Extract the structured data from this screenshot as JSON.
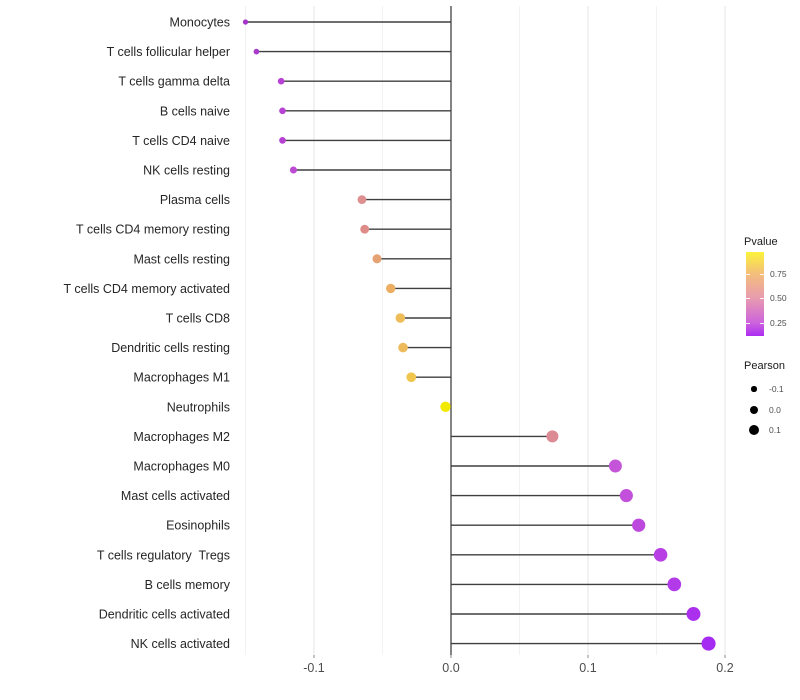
{
  "figure": {
    "background": "#FFFFFF"
  },
  "chart_data": {
    "type": "scatter",
    "variant": "lollipop",
    "orientation": "horizontal",
    "title": "",
    "xlabel": "",
    "ylabel": "",
    "grid": "on",
    "legend_position": "right",
    "baseline": 0,
    "x_axis": {
      "range": [
        -0.156,
        0.205
      ],
      "ticks": [
        {
          "value": -0.1,
          "label": "-0.1"
        },
        {
          "value": 0.0,
          "label": "0.0"
        },
        {
          "value": 0.1,
          "label": "0.1"
        },
        {
          "value": 0.2,
          "label": "0.2"
        }
      ],
      "minor_ticks": [
        -0.15,
        -0.05,
        0.05,
        0.15
      ]
    },
    "points": [
      {
        "label": "Monocytes",
        "pearson": -0.15,
        "color": "#A435C8"
      },
      {
        "label": "T cells follicular helper",
        "pearson": -0.142,
        "color": "#A93BC9"
      },
      {
        "label": "T cells gamma delta",
        "pearson": -0.124,
        "color": "#B741D4"
      },
      {
        "label": "B cells naive",
        "pearson": -0.123,
        "color": "#B742D4"
      },
      {
        "label": "T cells CD4 naive",
        "pearson": -0.123,
        "color": "#B641D3"
      },
      {
        "label": "NK cells resting",
        "pearson": -0.115,
        "color": "#BC4BD4"
      },
      {
        "label": "Plasma cells",
        "pearson": -0.065,
        "color": "#DE8F90"
      },
      {
        "label": "T cells CD4 memory resting",
        "pearson": -0.063,
        "color": "#DD8C88"
      },
      {
        "label": "Mast cells resting",
        "pearson": -0.054,
        "color": "#E5A273"
      },
      {
        "label": "T cells CD4 memory activated",
        "pearson": -0.044,
        "color": "#EBAE62"
      },
      {
        "label": "T cells CD8",
        "pearson": -0.037,
        "color": "#EEBC58"
      },
      {
        "label": "Dendritic cells resting",
        "pearson": -0.035,
        "color": "#EDBB5C"
      },
      {
        "label": "Macrophages M1",
        "pearson": -0.029,
        "color": "#F0C64F"
      },
      {
        "label": "Neutrophils",
        "pearson": -0.004,
        "color": "#F2E900"
      },
      {
        "label": "Macrophages M2",
        "pearson": 0.074,
        "color": "#DC8A94"
      },
      {
        "label": "Macrophages M0",
        "pearson": 0.12,
        "color": "#C454D8"
      },
      {
        "label": "Mast cells activated",
        "pearson": 0.128,
        "color": "#C250DA"
      },
      {
        "label": "Eosinophils",
        "pearson": 0.137,
        "color": "#BD48DE"
      },
      {
        "label": "T cells regulatory  Tregs",
        "pearson": 0.153,
        "color": "#B73FE4"
      },
      {
        "label": "B cells memory",
        "pearson": 0.163,
        "color": "#B23AE8"
      },
      {
        "label": "Dendritic cells activated",
        "pearson": 0.177,
        "color": "#AA30EE"
      },
      {
        "label": "NK cells activated",
        "pearson": 0.188,
        "color": "#A62BF2"
      }
    ],
    "legends": {
      "pvalue": {
        "title": "Pvalue",
        "gradient_stops": [
          {
            "color": "#FCF23A",
            "pos": 0.0
          },
          {
            "color": "#F3BE7B",
            "pos": 0.26
          },
          {
            "color": "#E89BB0",
            "pos": 0.55
          },
          {
            "color": "#CC63DC",
            "pos": 0.845
          },
          {
            "color": "#AC2CF2",
            "pos": 1.0
          }
        ],
        "ticks": [
          {
            "label": "0.75",
            "pos": 0.262
          },
          {
            "label": "0.50",
            "pos": 0.548
          },
          {
            "label": "0.25",
            "pos": 0.845
          }
        ]
      },
      "pearson": {
        "title": "Pearson",
        "items": [
          {
            "label": "-0.1",
            "value": -0.1
          },
          {
            "label": "0.0",
            "value": 0.0
          },
          {
            "label": "0.1",
            "value": 0.1
          }
        ]
      }
    },
    "style": {
      "grid_major": "#E4E4E4",
      "grid_minor": "#F2F2F2",
      "stem_color": "#3F3F3F",
      "zero_line_color": "#333333",
      "axis_text_color": "#4D4D4D",
      "category_text_color": "#262626",
      "legend_dot_color": "#000000"
    }
  }
}
